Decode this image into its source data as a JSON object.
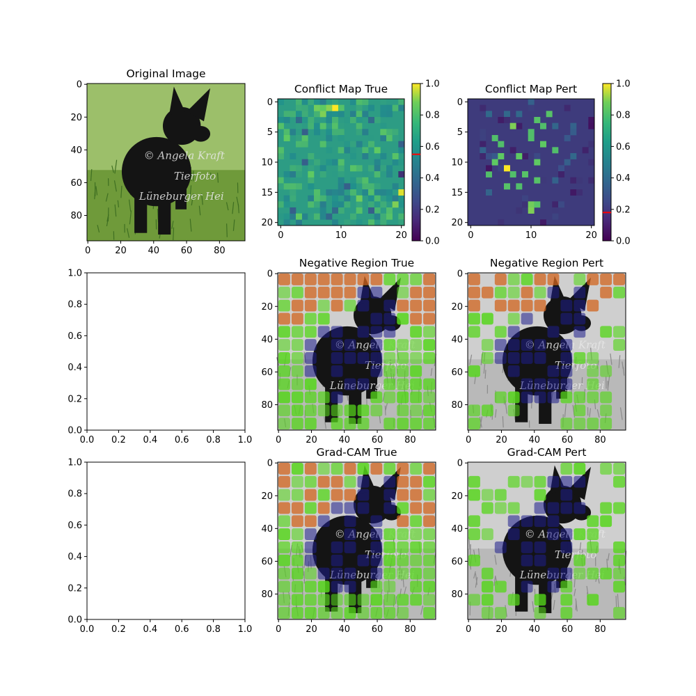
{
  "colors": {
    "viridis_low": "#440154",
    "viridis_mid": "#21918c",
    "viridis_high": "#fde725",
    "cbar_marker": "#ff0000",
    "overlay_bad": "#1e1e8c",
    "overlay_good": "#55d61a",
    "overlay_warn": "#d2641e"
  },
  "chart_data": [
    {
      "id": "original",
      "type": "image",
      "title": "Original Image",
      "image": {
        "subject": "black puppy on grass",
        "watermark_lines": [
          "© Angela Kraft",
          "Tierfoto",
          "Lüneburger Hei"
        ]
      },
      "xticks": [
        "0",
        "20",
        "40",
        "60",
        "80"
      ],
      "yticks": [
        "0",
        "20",
        "40",
        "60",
        "80"
      ],
      "xlim": [
        0,
        96
      ],
      "ylim": [
        96,
        0
      ]
    },
    {
      "id": "conflict-true",
      "type": "heatmap",
      "title": "Conflict Map True",
      "grid": [
        21,
        21
      ],
      "xticks": [
        "0",
        "10",
        "20"
      ],
      "yticks": [
        "0",
        "5",
        "10",
        "15",
        "20"
      ],
      "colorbar": {
        "ticks": [
          "0.0",
          "0.2",
          "0.4",
          "0.6",
          "0.8",
          "1.0"
        ],
        "range": [
          0,
          1
        ],
        "marker": 0.55,
        "colormap": "viridis"
      },
      "cells": [
        [
          9,
          1,
          1.0
        ],
        [
          8,
          1,
          0.82
        ],
        [
          6,
          1,
          0.78
        ],
        [
          7,
          2,
          0.8
        ],
        [
          7,
          1,
          0.75
        ],
        [
          3,
          3,
          0.35
        ],
        [
          4,
          5,
          0.3
        ],
        [
          1,
          6,
          0.75
        ],
        [
          20,
          7,
          0.3
        ],
        [
          16,
          8,
          0.75
        ],
        [
          20,
          12,
          0.15
        ],
        [
          5,
          12,
          0.75
        ],
        [
          20,
          15,
          0.95
        ],
        [
          13,
          16,
          0.78
        ],
        [
          19,
          17,
          0.8
        ],
        [
          2,
          18,
          0.3
        ],
        [
          3,
          19,
          0.75
        ],
        [
          10,
          10,
          0.7
        ],
        [
          12,
          11,
          0.72
        ],
        [
          11,
          14,
          0.3
        ],
        [
          15,
          3,
          0.35
        ],
        [
          19,
          9,
          0.72
        ],
        [
          9,
          18,
          0.35
        ],
        [
          4,
          10,
          0.3
        ],
        [
          17,
          5,
          0.72
        ],
        [
          14,
          13,
          0.7
        ],
        [
          8,
          19,
          0.33
        ],
        [
          6,
          15,
          0.7
        ],
        [
          18,
          19,
          0.72
        ],
        [
          0,
          8,
          0.7
        ],
        [
          15,
          18,
          0.3
        ]
      ]
    },
    {
      "id": "conflict-pert",
      "type": "heatmap",
      "title": "Conflict Map Pert",
      "grid": [
        21,
        21
      ],
      "xticks": [
        "0",
        "10",
        "20"
      ],
      "yticks": [
        "0",
        "5",
        "10",
        "15",
        "20"
      ],
      "colorbar": {
        "ticks": [
          "0.0",
          "0.2",
          "0.4",
          "0.6",
          "0.8",
          "1.0"
        ],
        "range": [
          0,
          1
        ],
        "marker": 0.18,
        "colormap": "viridis"
      },
      "cells": [
        [
          6,
          11,
          1.0
        ],
        [
          8,
          9,
          0.75
        ],
        [
          7,
          4,
          0.8
        ],
        [
          11,
          3,
          0.72
        ],
        [
          10,
          6,
          0.7
        ],
        [
          10,
          17,
          0.78
        ],
        [
          10,
          18,
          0.8
        ],
        [
          11,
          17,
          0.72
        ],
        [
          12,
          4,
          0.7
        ],
        [
          9,
          12,
          0.72
        ],
        [
          4,
          10,
          0.75
        ],
        [
          3,
          12,
          0.7
        ],
        [
          5,
          9,
          0.75
        ],
        [
          7,
          12,
          0.7
        ],
        [
          13,
          2,
          0.72
        ],
        [
          14,
          8,
          0.7
        ],
        [
          12,
          7,
          0.75
        ],
        [
          11,
          13,
          0.72
        ],
        [
          4,
          6,
          0.7
        ],
        [
          3,
          11,
          0.06
        ],
        [
          8,
          14,
          0.7
        ],
        [
          16,
          10,
          0.3
        ],
        [
          11,
          10,
          0.75
        ],
        [
          10,
          5,
          0.7
        ],
        [
          6,
          14,
          0.72
        ],
        [
          5,
          7,
          0.7
        ]
      ]
    },
    {
      "id": "empty-1",
      "type": "axes",
      "title": "",
      "xticks": [
        "0.0",
        "0.2",
        "0.4",
        "0.6",
        "0.8",
        "1.0"
      ],
      "yticks": [
        "0.0",
        "0.2",
        "0.4",
        "0.6",
        "0.8",
        "1.0"
      ],
      "xlim": [
        0,
        1
      ],
      "ylim": [
        0,
        1
      ]
    },
    {
      "id": "negative-true",
      "type": "image",
      "title": "Negative Region True",
      "overlay": {
        "warm_top": 0.35,
        "green_amount": 0.9,
        "blue_on_dog": true
      },
      "xticks": [
        "0",
        "20",
        "40",
        "60",
        "80"
      ],
      "yticks": [
        "0",
        "20",
        "40",
        "60",
        "80"
      ],
      "xlim": [
        0,
        96
      ],
      "ylim": [
        96,
        0
      ]
    },
    {
      "id": "negative-pert",
      "type": "image",
      "title": "Negative Region Pert",
      "overlay": {
        "warm_top": 0.25,
        "green_amount": 0.45,
        "blue_on_dog": true
      },
      "xticks": [
        "0",
        "20",
        "40",
        "60",
        "80"
      ],
      "yticks": [
        "0",
        "20",
        "40",
        "60",
        "80"
      ],
      "xlim": [
        0,
        96
      ],
      "ylim": [
        96,
        0
      ]
    },
    {
      "id": "empty-2",
      "type": "axes",
      "title": "",
      "xticks": [
        "0.0",
        "0.2",
        "0.4",
        "0.6",
        "0.8",
        "1.0"
      ],
      "yticks": [
        "0.0",
        "0.2",
        "0.4",
        "0.6",
        "0.8",
        "1.0"
      ],
      "xlim": [
        0,
        1
      ],
      "ylim": [
        0,
        1
      ]
    },
    {
      "id": "gradcam-true",
      "type": "image",
      "title": "Grad-CAM True",
      "overlay": {
        "warm_top": 0.4,
        "green_amount": 0.95,
        "blue_on_dog": true
      },
      "xticks": [
        "0",
        "20",
        "40",
        "60",
        "80"
      ],
      "yticks": [
        "0",
        "20",
        "40",
        "60",
        "80"
      ],
      "xlim": [
        0,
        96
      ],
      "ylim": [
        96,
        0
      ]
    },
    {
      "id": "gradcam-pert",
      "type": "image",
      "title": "Grad-CAM Pert",
      "overlay": {
        "warm_top": 0.0,
        "green_amount": 0.55,
        "blue_on_dog": true
      },
      "xticks": [
        "0",
        "20",
        "40",
        "60",
        "80"
      ],
      "yticks": [
        "0",
        "20",
        "40",
        "60",
        "80"
      ],
      "xlim": [
        0,
        96
      ],
      "ylim": [
        96,
        0
      ]
    }
  ]
}
